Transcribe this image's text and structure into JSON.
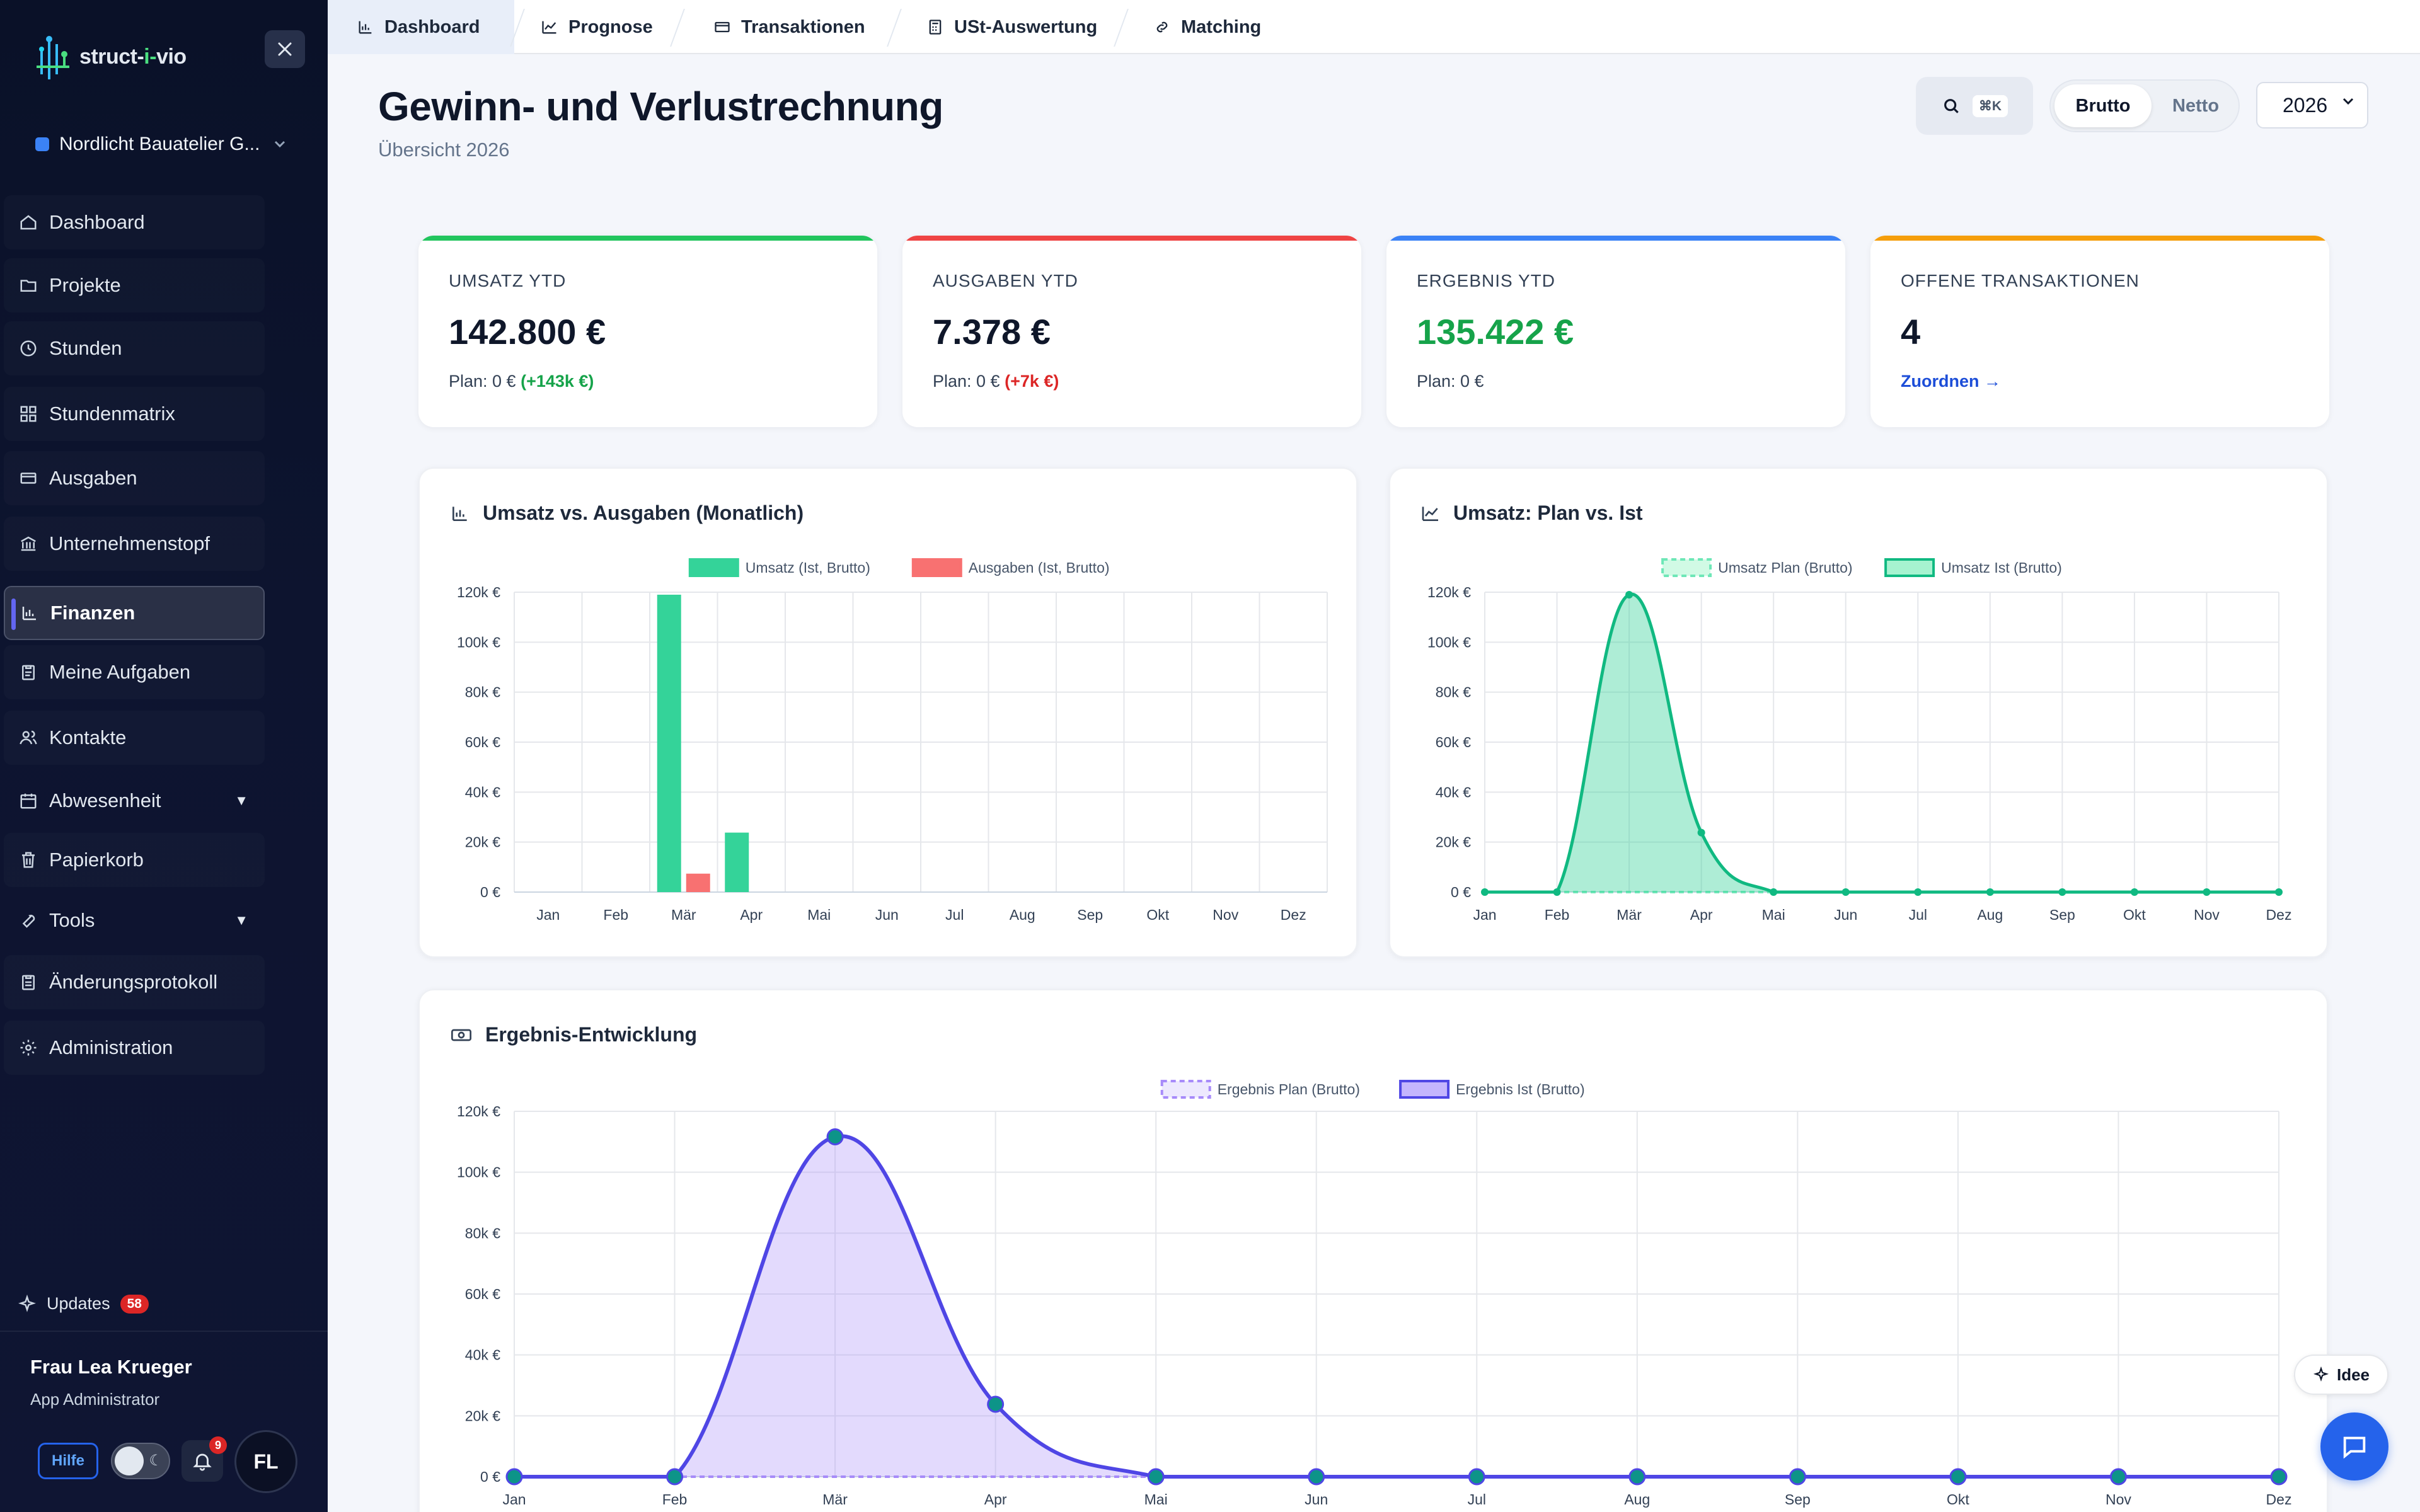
{
  "app": {
    "logo_text_1": "struct-",
    "logo_text_2": "i-",
    "logo_text_3": "vio",
    "company": "Nordlicht Bauatelier G..."
  },
  "sidebar": {
    "items": [
      {
        "label": "Dashboard",
        "icon": "dashboard-icon"
      },
      {
        "label": "Projekte",
        "icon": "folder-icon"
      },
      {
        "label": "Stunden",
        "icon": "clock-icon"
      },
      {
        "label": "Stundenmatrix",
        "icon": "grid-icon"
      },
      {
        "label": "Ausgaben",
        "icon": "receipt-icon"
      },
      {
        "label": "Unternehmenstopf",
        "icon": "bank-icon"
      },
      {
        "label": "Finanzen",
        "icon": "bar-chart-icon",
        "active": true
      },
      {
        "label": "Meine Aufgaben",
        "icon": "clipboard-icon"
      },
      {
        "label": "Kontakte",
        "icon": "users-icon"
      },
      {
        "label": "Abwesenheit",
        "icon": "calendar-icon",
        "caret": "▼"
      },
      {
        "label": "Papierkorb",
        "icon": "trash-icon"
      },
      {
        "label": "Tools",
        "icon": "wrench-icon",
        "caret": "▼"
      },
      {
        "label": "Änderungsprotokoll",
        "icon": "clipboard-list-icon"
      },
      {
        "label": "Administration",
        "icon": "gear-icon"
      }
    ],
    "updates_label": "Updates",
    "updates_count": "58",
    "user_name": "Frau Lea Krueger",
    "user_role": "App Administrator",
    "help_label": "Hilfe",
    "notif_count": "9",
    "avatar_initials": "FL"
  },
  "tabs": [
    {
      "label": "Dashboard",
      "icon": "bar-chart-icon",
      "active": true
    },
    {
      "label": "Prognose",
      "icon": "trend-icon"
    },
    {
      "label": "Transaktionen",
      "icon": "card-icon"
    },
    {
      "label": "USt-Auswertung",
      "icon": "calculator-icon"
    },
    {
      "label": "Matching",
      "icon": "link-icon"
    }
  ],
  "header": {
    "title": "Gewinn- und Verlustrechnung",
    "subtitle": "Übersicht 2026",
    "search_shortcut": "⌘K",
    "toggle_on": "Brutto",
    "toggle_off": "Netto",
    "year": "2026"
  },
  "kpis": [
    {
      "label": "UMSATZ YTD",
      "value": "142.800 €",
      "plan": "Plan: 0 € ",
      "delta": "(+143k €)",
      "delta_kind": "pos",
      "accent": "#22c55e"
    },
    {
      "label": "AUSGABEN YTD",
      "value": "7.378 €",
      "plan": "Plan: 0 € ",
      "delta": "(+7k €)",
      "delta_kind": "neg",
      "accent": "#ef4444"
    },
    {
      "label": "ERGEBNIS YTD",
      "value": "135.422 €",
      "plan": "Plan: 0 €",
      "delta": "",
      "delta_kind": "",
      "accent": "#3b82f6",
      "value_color": "#16a34a"
    },
    {
      "label": "OFFENE TRANSAKTIONEN",
      "value": "4",
      "link": "Zuordnen →",
      "accent": "#f59e0b"
    }
  ],
  "colors": {
    "umsatz": "#34d399",
    "umsatz_line": "#10b981",
    "ausgaben": "#f87171",
    "ergebnis": "#4f46e5",
    "ergebnis_fill": "#ddd6fe"
  },
  "chart_data": [
    {
      "type": "bar",
      "title": "Umsatz vs. Ausgaben (Monatlich)",
      "categories": [
        "Jan",
        "Feb",
        "Mär",
        "Apr",
        "Mai",
        "Jun",
        "Jul",
        "Aug",
        "Sep",
        "Okt",
        "Nov",
        "Dez"
      ],
      "series": [
        {
          "name": "Umsatz (Ist, Brutto)",
          "values": [
            0,
            0,
            119000,
            23800,
            0,
            0,
            0,
            0,
            0,
            0,
            0,
            0
          ]
        },
        {
          "name": "Ausgaben (Ist, Brutto)",
          "values": [
            0,
            0,
            7378,
            0,
            0,
            0,
            0,
            0,
            0,
            0,
            0,
            0
          ]
        }
      ],
      "ylim": [
        0,
        120000
      ],
      "yticks": [
        "120k €",
        "100k €",
        "80k €",
        "60k €",
        "40k €",
        "20k €",
        "0 €"
      ],
      "legend": "top"
    },
    {
      "type": "area",
      "title": "Umsatz: Plan vs. Ist",
      "categories": [
        "Jan",
        "Feb",
        "Mär",
        "Apr",
        "Mai",
        "Jun",
        "Jul",
        "Aug",
        "Sep",
        "Okt",
        "Nov",
        "Dez"
      ],
      "series": [
        {
          "name": "Umsatz Plan (Brutto)",
          "values": [
            0,
            0,
            0,
            0,
            0,
            0,
            0,
            0,
            0,
            0,
            0,
            0
          ]
        },
        {
          "name": "Umsatz Ist (Brutto)",
          "values": [
            0,
            0,
            119000,
            23800,
            0,
            0,
            0,
            0,
            0,
            0,
            0,
            0
          ]
        }
      ],
      "ylim": [
        0,
        120000
      ],
      "yticks": [
        "120k €",
        "100k €",
        "80k €",
        "60k €",
        "40k €",
        "20k €",
        "0 €"
      ],
      "legend": "top"
    },
    {
      "type": "area",
      "title": "Ergebnis-Entwicklung",
      "categories": [
        "Jan",
        "Feb",
        "Mär",
        "Apr",
        "Mai",
        "Jun",
        "Jul",
        "Aug",
        "Sep",
        "Okt",
        "Nov",
        "Dez"
      ],
      "series": [
        {
          "name": "Ergebnis Plan (Brutto)",
          "values": [
            0,
            0,
            0,
            0,
            0,
            0,
            0,
            0,
            0,
            0,
            0,
            0
          ]
        },
        {
          "name": "Ergebnis Ist (Brutto)",
          "values": [
            0,
            0,
            111622,
            23800,
            0,
            0,
            0,
            0,
            0,
            0,
            0,
            0
          ]
        }
      ],
      "ylim": [
        0,
        120000
      ],
      "yticks": [
        "120k €",
        "100k €",
        "80k €",
        "60k €",
        "40k €",
        "20k €",
        "0 €"
      ],
      "legend": "top"
    }
  ],
  "fab": {
    "idee_label": "Idee"
  }
}
